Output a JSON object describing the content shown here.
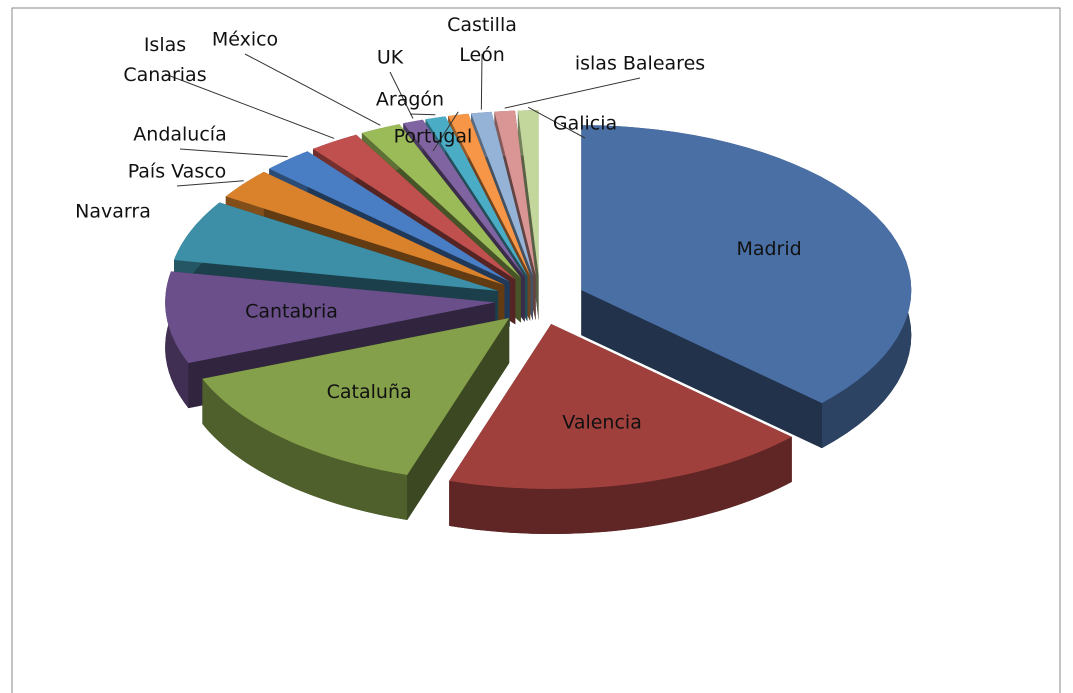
{
  "chart_data": {
    "type": "pie",
    "categories": [
      "Madrid",
      "Valencia",
      "Cataluña",
      "Cantabria",
      "Navarra",
      "País Vasco",
      "Andalucía",
      "Islas Canarias",
      "México",
      "UK",
      "Aragón",
      "Portugal",
      "Castilla León",
      "islas Baleares",
      "Galicia"
    ],
    "values": [
      37,
      18,
      14,
      9,
      6,
      3,
      2.5,
      2.5,
      2,
      1,
      1,
      1,
      1,
      1,
      1
    ],
    "colors": [
      "#4a6fa5",
      "#a0403d",
      "#84a04a",
      "#6a4f8a",
      "#3c8fa6",
      "#d9822b",
      "#4a7ec4",
      "#c0504d",
      "#9bbb59",
      "#8064a2",
      "#4bacc6",
      "#f79646",
      "#95b3d7",
      "#d99694",
      "#c3d69b"
    ]
  }
}
